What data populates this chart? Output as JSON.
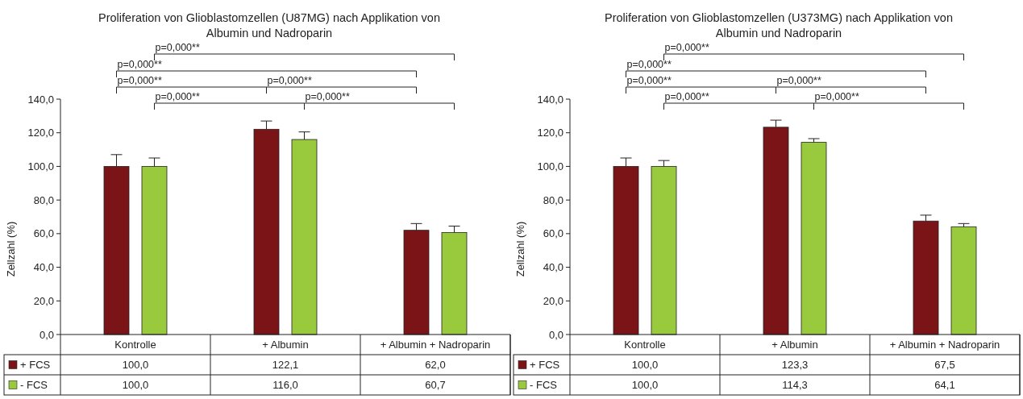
{
  "chart_data": [
    {
      "type": "bar",
      "title": "Proliferation von Glioblastomzellen (U87MG) nach Applikation von Albumin und Nadroparin",
      "ylabel": "Zellzahl (%)",
      "categories": [
        "Kontrolle",
        "+ Albumin",
        "+ Albumin + Nadroparin"
      ],
      "series": [
        {
          "name": "+ FCS",
          "color": "#7b1416",
          "values": [
            100.0,
            122.1,
            62.0
          ],
          "value_labels": [
            "100,0",
            "122,1",
            "62,0"
          ],
          "errors": [
            [
              100.0,
              107
            ],
            [
              122.1,
              127
            ],
            [
              62.0,
              66
            ]
          ]
        },
        {
          "name": "- FCS",
          "color": "#99c93c",
          "values": [
            100.0,
            116.0,
            60.7
          ],
          "value_labels": [
            "100,0",
            "116,0",
            "60,7"
          ],
          "errors": [
            [
              100.0,
              105
            ],
            [
              116.0,
              120.5
            ],
            [
              60.7,
              64.5
            ]
          ]
        }
      ],
      "ylim": [
        0,
        140
      ],
      "yticks": [
        {
          "value": 0,
          "label": "0,0"
        },
        {
          "value": 20,
          "label": "20,0"
        },
        {
          "value": 40,
          "label": "40,0"
        },
        {
          "value": 60,
          "label": "60,0"
        },
        {
          "value": 80,
          "label": "80,0"
        },
        {
          "value": 100,
          "label": "100,0"
        },
        {
          "value": 120,
          "label": "120,0"
        },
        {
          "value": 140,
          "label": "140,0"
        }
      ],
      "legend": "bottom left",
      "annotations": [
        "p=0,000**",
        "p=0,000**",
        "p=0,000**",
        "p=0,000**",
        "p=0,000**",
        "p=0,000**"
      ]
    },
    {
      "type": "bar",
      "title": "Proliferation von Glioblastomzellen (U373MG) nach Applikation von Albumin und Nadroparin",
      "ylabel": "Zellzahl (%)",
      "categories": [
        "Kontrolle",
        "+ Albumin",
        "+ Albumin + Nadroparin"
      ],
      "series": [
        {
          "name": "+ FCS",
          "color": "#7b1416",
          "values": [
            100.0,
            123.3,
            67.5
          ],
          "value_labels": [
            "100,0",
            "123,3",
            "67,5"
          ],
          "errors": [
            [
              100.0,
              105
            ],
            [
              123.3,
              127.5
            ],
            [
              67.5,
              71
            ]
          ]
        },
        {
          "name": "- FCS",
          "color": "#99c93c",
          "values": [
            100.0,
            114.3,
            64.1
          ],
          "value_labels": [
            "100,0",
            "114,3",
            "64,1"
          ],
          "errors": [
            [
              100.0,
              103.5
            ],
            [
              114.3,
              116.5
            ],
            [
              64.1,
              66
            ]
          ]
        }
      ],
      "ylim": [
        0,
        140
      ],
      "yticks": [
        {
          "value": 0,
          "label": "0,0"
        },
        {
          "value": 20,
          "label": "20,0"
        },
        {
          "value": 40,
          "label": "40,0"
        },
        {
          "value": 60,
          "label": "60,0"
        },
        {
          "value": 80,
          "label": "80,0"
        },
        {
          "value": 100,
          "label": "100,0"
        },
        {
          "value": 120,
          "label": "120,0"
        },
        {
          "value": 140,
          "label": "140,0"
        }
      ],
      "legend": "bottom left",
      "annotations": [
        "p=0,000**",
        "p=0,000**",
        "p=0,000**",
        "p=0,000**",
        "p=0,000**",
        "p=0,000**"
      ]
    }
  ]
}
